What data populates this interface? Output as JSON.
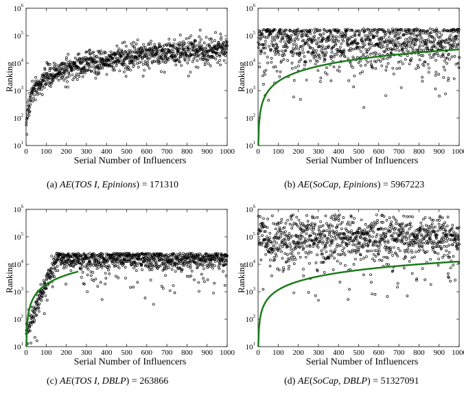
{
  "colors": {
    "scatter": "#000000",
    "curve": "#1a7a1a"
  },
  "watermark_text": "",
  "chart_data": [
    {
      "id": "a",
      "type": "scatter",
      "caption": {
        "prefix": "(a)",
        "func": "AE",
        "args": "TOS I, Epinions",
        "value": "= 171310"
      },
      "xlabel": "Serial Number of Influencers",
      "ylabel": "Ranking",
      "xlim": [
        0,
        1000
      ],
      "ylim": [
        10,
        1000000
      ],
      "yscale": "log",
      "xticks": [
        "0",
        "100",
        "200",
        "300",
        "400",
        "500",
        "600",
        "700",
        "800",
        "900",
        "1000"
      ],
      "yticks": [
        {
          "base": "10",
          "exp": "1"
        },
        {
          "base": "10",
          "exp": "2"
        },
        {
          "base": "10",
          "exp": "3"
        },
        {
          "base": "10",
          "exp": "4"
        },
        {
          "base": "10",
          "exp": "5"
        },
        {
          "base": "10",
          "exp": "6"
        }
      ],
      "scatter_model": {
        "kind": "growing",
        "center_start": 1.2,
        "center_end": 4.55,
        "spread": 0.22,
        "low_tail": 0.5
      },
      "curve": null,
      "grid": false,
      "legend": "none"
    },
    {
      "id": "b",
      "type": "scatter",
      "caption": {
        "prefix": "(b)",
        "func": "AE",
        "args": "SoCap, Epinions",
        "value": "= 5967223"
      },
      "xlabel": "Serial Number of Influencers",
      "ylabel": "Ranking",
      "xlim": [
        0,
        1000
      ],
      "ylim": [
        10,
        1000000
      ],
      "yscale": "log",
      "xticks": [
        "0",
        "100",
        "200",
        "300",
        "400",
        "500",
        "600",
        "700",
        "800",
        "900",
        "1000"
      ],
      "yticks": [
        {
          "base": "10",
          "exp": "1"
        },
        {
          "base": "10",
          "exp": "2"
        },
        {
          "base": "10",
          "exp": "3"
        },
        {
          "base": "10",
          "exp": "4"
        },
        {
          "base": "10",
          "exp": "5"
        },
        {
          "base": "10",
          "exp": "6"
        }
      ],
      "scatter_model": {
        "kind": "band",
        "center": 4.8,
        "spread": 0.55,
        "top": 5.25,
        "low_tail": 1.1
      },
      "curve": {
        "y_start": 1.0,
        "y_end": 4.5
      },
      "grid": false,
      "legend": "none"
    },
    {
      "id": "c",
      "type": "scatter",
      "caption": {
        "prefix": "(c)",
        "func": "AE",
        "args": "TOS I, DBLP",
        "value": "= 263866"
      },
      "xlabel": "Serial Number of Influencers",
      "ylabel": "Ranking",
      "xlim": [
        0,
        1000
      ],
      "ylim": [
        10,
        1000000
      ],
      "yscale": "log",
      "xticks": [
        "0",
        "100",
        "200",
        "300",
        "400",
        "500",
        "600",
        "700",
        "800",
        "900",
        "1000"
      ],
      "yticks": [
        {
          "base": "10",
          "exp": "1"
        },
        {
          "base": "10",
          "exp": "2"
        },
        {
          "base": "10",
          "exp": "3"
        },
        {
          "base": "10",
          "exp": "4"
        },
        {
          "base": "10",
          "exp": "5"
        },
        {
          "base": "10",
          "exp": "6"
        }
      ],
      "scatter_model": {
        "kind": "band",
        "center": 4.2,
        "spread": 0.25,
        "top": 4.4,
        "low_tail": 0.9,
        "ramp": 150
      },
      "curve": {
        "y_start": 1.0,
        "y_end": 4.4,
        "x_end": 260
      },
      "grid": false,
      "legend": "none"
    },
    {
      "id": "d",
      "type": "scatter",
      "caption": {
        "prefix": "(d)",
        "func": "AE",
        "args": "SoCap, DBLP",
        "value": "= 51327091"
      },
      "xlabel": "Serial Number of Influencers",
      "ylabel": "Ranking",
      "xlim": [
        0,
        1000
      ],
      "ylim": [
        10,
        1000000
      ],
      "yscale": "log",
      "xticks": [
        "0",
        "100",
        "200",
        "300",
        "400",
        "500",
        "600",
        "700",
        "800",
        "900",
        "1000"
      ],
      "yticks": [
        {
          "base": "10",
          "exp": "1"
        },
        {
          "base": "10",
          "exp": "2"
        },
        {
          "base": "10",
          "exp": "3"
        },
        {
          "base": "10",
          "exp": "4"
        },
        {
          "base": "10",
          "exp": "5"
        },
        {
          "base": "10",
          "exp": "6"
        }
      ],
      "scatter_model": {
        "kind": "band",
        "center": 5.0,
        "spread": 0.5,
        "top": 5.8,
        "low_tail": 1.2
      },
      "curve": {
        "y_start": 1.0,
        "y_end": 4.1
      },
      "grid": false,
      "legend": "none"
    }
  ]
}
